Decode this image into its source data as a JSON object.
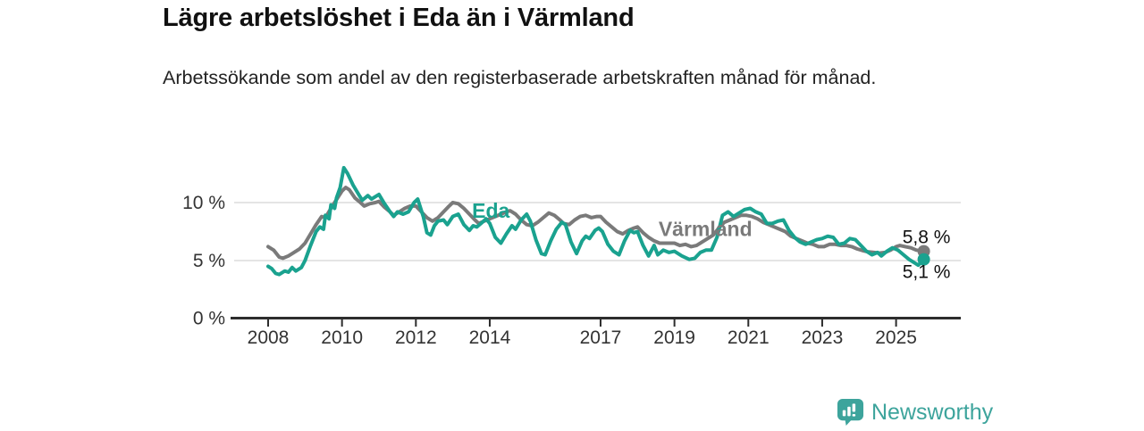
{
  "header": {
    "title": "Lägre arbetslöshet i Eda än i Värmland",
    "subtitle": "Arbetssökande som andel av den registerbaserade arbetskraften månad för månad."
  },
  "chart_data": {
    "type": "line",
    "unit": "%",
    "grid": "horizontal-only",
    "x_axis": {
      "ticks": [
        2008,
        2010,
        2012,
        2014,
        2017,
        2019,
        2021,
        2023,
        2025
      ],
      "range": [
        2007.8,
        2026.2
      ]
    },
    "y_axis": {
      "ticks": [
        {
          "value": 0,
          "label": "0 %"
        },
        {
          "value": 5,
          "label": "5 %"
        },
        {
          "value": 10,
          "label": "10 %"
        }
      ],
      "range": [
        0,
        13.5
      ]
    },
    "series": [
      {
        "name": "Värmland",
        "id": "varmland",
        "color": "#7a7a7a",
        "last_value_label": "5,8 %",
        "label_at": {
          "year": 2018.57,
          "value": 7.1
        },
        "points": [
          [
            2008.0,
            6.2
          ],
          [
            2008.15,
            5.9
          ],
          [
            2008.3,
            5.3
          ],
          [
            2008.4,
            5.2
          ],
          [
            2008.55,
            5.4
          ],
          [
            2008.7,
            5.7
          ],
          [
            2008.85,
            6.0
          ],
          [
            2009.0,
            6.5
          ],
          [
            2009.15,
            7.3
          ],
          [
            2009.3,
            8.1
          ],
          [
            2009.45,
            8.8
          ],
          [
            2009.55,
            8.7
          ],
          [
            2009.7,
            9.5
          ],
          [
            2009.8,
            10.0
          ],
          [
            2009.9,
            10.5
          ],
          [
            2010.0,
            11.0
          ],
          [
            2010.1,
            11.3
          ],
          [
            2010.2,
            11.1
          ],
          [
            2010.35,
            10.4
          ],
          [
            2010.5,
            10.0
          ],
          [
            2010.6,
            9.7
          ],
          [
            2010.75,
            9.9
          ],
          [
            2010.9,
            10.0
          ],
          [
            2011.0,
            10.1
          ],
          [
            2011.15,
            9.6
          ],
          [
            2011.3,
            9.2
          ],
          [
            2011.4,
            8.9
          ],
          [
            2011.55,
            9.2
          ],
          [
            2011.7,
            9.5
          ],
          [
            2011.85,
            9.7
          ],
          [
            2012.0,
            9.7
          ],
          [
            2012.15,
            9.2
          ],
          [
            2012.3,
            8.7
          ],
          [
            2012.45,
            8.4
          ],
          [
            2012.6,
            8.7
          ],
          [
            2012.75,
            9.2
          ],
          [
            2012.9,
            9.7
          ],
          [
            2013.0,
            10.0
          ],
          [
            2013.15,
            9.9
          ],
          [
            2013.3,
            9.5
          ],
          [
            2013.45,
            9.0
          ],
          [
            2013.6,
            8.5
          ],
          [
            2013.7,
            8.2
          ],
          [
            2013.85,
            8.4
          ],
          [
            2014.0,
            8.6
          ],
          [
            2014.15,
            8.8
          ],
          [
            2014.3,
            9.0
          ],
          [
            2014.45,
            9.2
          ],
          [
            2014.55,
            9.3
          ],
          [
            2014.7,
            9.0
          ],
          [
            2014.85,
            8.5
          ],
          [
            2015.0,
            8.1
          ],
          [
            2015.15,
            8.0
          ],
          [
            2015.3,
            8.3
          ],
          [
            2015.45,
            8.7
          ],
          [
            2015.6,
            9.1
          ],
          [
            2015.75,
            8.9
          ],
          [
            2015.9,
            8.5
          ],
          [
            2016.0,
            8.2
          ],
          [
            2016.15,
            8.1
          ],
          [
            2016.3,
            8.5
          ],
          [
            2016.45,
            8.8
          ],
          [
            2016.6,
            8.9
          ],
          [
            2016.75,
            8.7
          ],
          [
            2016.9,
            8.8
          ],
          [
            2017.0,
            8.8
          ],
          [
            2017.15,
            8.3
          ],
          [
            2017.3,
            7.9
          ],
          [
            2017.45,
            7.5
          ],
          [
            2017.6,
            7.3
          ],
          [
            2017.75,
            7.6
          ],
          [
            2017.9,
            7.8
          ],
          [
            2018.0,
            7.9
          ],
          [
            2018.15,
            7.4
          ],
          [
            2018.3,
            7.0
          ],
          [
            2018.45,
            6.7
          ],
          [
            2018.6,
            6.5
          ],
          [
            2018.75,
            6.5
          ],
          [
            2018.9,
            6.5
          ],
          [
            2019.0,
            6.5
          ],
          [
            2019.15,
            6.3
          ],
          [
            2019.3,
            6.4
          ],
          [
            2019.45,
            6.2
          ],
          [
            2019.6,
            6.3
          ],
          [
            2019.75,
            6.6
          ],
          [
            2019.9,
            6.9
          ],
          [
            2020.05,
            7.2
          ],
          [
            2020.2,
            7.8
          ],
          [
            2020.35,
            8.3
          ],
          [
            2020.5,
            8.5
          ],
          [
            2020.65,
            8.7
          ],
          [
            2020.8,
            8.9
          ],
          [
            2020.95,
            8.9
          ],
          [
            2021.1,
            8.8
          ],
          [
            2021.25,
            8.6
          ],
          [
            2021.4,
            8.3
          ],
          [
            2021.55,
            8.1
          ],
          [
            2021.7,
            7.9
          ],
          [
            2021.85,
            7.7
          ],
          [
            2022.0,
            7.5
          ],
          [
            2022.15,
            7.1
          ],
          [
            2022.3,
            6.9
          ],
          [
            2022.45,
            6.7
          ],
          [
            2022.6,
            6.5
          ],
          [
            2022.75,
            6.4
          ],
          [
            2022.9,
            6.2
          ],
          [
            2023.05,
            6.2
          ],
          [
            2023.2,
            6.4
          ],
          [
            2023.35,
            6.4
          ],
          [
            2023.5,
            6.3
          ],
          [
            2023.65,
            6.3
          ],
          [
            2023.8,
            6.2
          ],
          [
            2023.95,
            6.0
          ],
          [
            2024.1,
            5.85
          ],
          [
            2024.25,
            5.75
          ],
          [
            2024.4,
            5.7
          ],
          [
            2024.55,
            5.65
          ],
          [
            2024.7,
            5.7
          ],
          [
            2024.85,
            5.9
          ],
          [
            2025.0,
            6.2
          ],
          [
            2025.1,
            6.3
          ],
          [
            2025.25,
            6.2
          ],
          [
            2025.4,
            6.1
          ],
          [
            2025.55,
            5.9
          ],
          [
            2025.65,
            5.85
          ],
          [
            2025.75,
            5.8
          ]
        ]
      },
      {
        "name": "Eda",
        "id": "eda",
        "color": "#1aa28f",
        "last_value_label": "5,1 %",
        "label_at": {
          "year": 2013.52,
          "value": 8.7
        },
        "points": [
          [
            2008.0,
            4.5
          ],
          [
            2008.1,
            4.3
          ],
          [
            2008.2,
            3.9
          ],
          [
            2008.3,
            3.8
          ],
          [
            2008.45,
            4.1
          ],
          [
            2008.55,
            4.0
          ],
          [
            2008.65,
            4.4
          ],
          [
            2008.75,
            4.1
          ],
          [
            2008.9,
            4.4
          ],
          [
            2009.0,
            5.0
          ],
          [
            2009.15,
            6.3
          ],
          [
            2009.3,
            7.5
          ],
          [
            2009.4,
            7.9
          ],
          [
            2009.5,
            7.7
          ],
          [
            2009.55,
            8.9
          ],
          [
            2009.65,
            8.6
          ],
          [
            2009.7,
            9.8
          ],
          [
            2009.8,
            9.5
          ],
          [
            2009.85,
            10.4
          ],
          [
            2009.95,
            11.3
          ],
          [
            2010.05,
            13.0
          ],
          [
            2010.15,
            12.5
          ],
          [
            2010.3,
            11.5
          ],
          [
            2010.45,
            10.7
          ],
          [
            2010.55,
            10.2
          ],
          [
            2010.7,
            10.6
          ],
          [
            2010.8,
            10.3
          ],
          [
            2010.95,
            10.6
          ],
          [
            2011.0,
            10.7
          ],
          [
            2011.15,
            9.9
          ],
          [
            2011.3,
            9.2
          ],
          [
            2011.4,
            8.8
          ],
          [
            2011.5,
            9.2
          ],
          [
            2011.65,
            9.0
          ],
          [
            2011.8,
            9.2
          ],
          [
            2011.95,
            10.0
          ],
          [
            2012.05,
            10.3
          ],
          [
            2012.2,
            8.8
          ],
          [
            2012.3,
            7.4
          ],
          [
            2012.4,
            7.2
          ],
          [
            2012.5,
            8.0
          ],
          [
            2012.6,
            8.4
          ],
          [
            2012.75,
            8.5
          ],
          [
            2012.85,
            8.1
          ],
          [
            2013.0,
            8.8
          ],
          [
            2013.15,
            9.0
          ],
          [
            2013.3,
            8.1
          ],
          [
            2013.45,
            7.6
          ],
          [
            2013.55,
            8.0
          ],
          [
            2013.65,
            7.9
          ],
          [
            2013.8,
            8.3
          ],
          [
            2013.9,
            8.6
          ],
          [
            2014.0,
            8.2
          ],
          [
            2014.15,
            7.0
          ],
          [
            2014.3,
            6.5
          ],
          [
            2014.45,
            7.3
          ],
          [
            2014.6,
            8.0
          ],
          [
            2014.7,
            7.7
          ],
          [
            2014.85,
            8.5
          ],
          [
            2015.0,
            9.0
          ],
          [
            2015.1,
            8.4
          ],
          [
            2015.25,
            6.8
          ],
          [
            2015.4,
            5.6
          ],
          [
            2015.5,
            5.5
          ],
          [
            2015.65,
            6.7
          ],
          [
            2015.8,
            7.7
          ],
          [
            2015.95,
            8.3
          ],
          [
            2016.05,
            8.1
          ],
          [
            2016.2,
            6.6
          ],
          [
            2016.35,
            5.6
          ],
          [
            2016.5,
            6.7
          ],
          [
            2016.6,
            7.1
          ],
          [
            2016.7,
            6.9
          ],
          [
            2016.85,
            7.6
          ],
          [
            2016.95,
            7.8
          ],
          [
            2017.05,
            7.5
          ],
          [
            2017.2,
            6.4
          ],
          [
            2017.35,
            5.8
          ],
          [
            2017.5,
            5.5
          ],
          [
            2017.65,
            6.7
          ],
          [
            2017.8,
            7.6
          ],
          [
            2017.9,
            7.4
          ],
          [
            2018.0,
            7.5
          ],
          [
            2018.15,
            6.3
          ],
          [
            2018.3,
            5.4
          ],
          [
            2018.45,
            6.3
          ],
          [
            2018.55,
            5.5
          ],
          [
            2018.7,
            5.9
          ],
          [
            2018.85,
            5.7
          ],
          [
            2019.0,
            5.8
          ],
          [
            2019.2,
            5.4
          ],
          [
            2019.4,
            5.1
          ],
          [
            2019.55,
            5.2
          ],
          [
            2019.7,
            5.7
          ],
          [
            2019.85,
            5.9
          ],
          [
            2020.0,
            5.9
          ],
          [
            2020.15,
            7.0
          ],
          [
            2020.3,
            8.9
          ],
          [
            2020.45,
            9.2
          ],
          [
            2020.6,
            8.8
          ],
          [
            2020.75,
            9.1
          ],
          [
            2020.9,
            9.4
          ],
          [
            2021.05,
            9.5
          ],
          [
            2021.2,
            9.2
          ],
          [
            2021.35,
            9.0
          ],
          [
            2021.5,
            8.2
          ],
          [
            2021.65,
            8.2
          ],
          [
            2021.8,
            8.4
          ],
          [
            2021.95,
            8.5
          ],
          [
            2022.1,
            7.6
          ],
          [
            2022.25,
            7.0
          ],
          [
            2022.4,
            6.6
          ],
          [
            2022.55,
            6.4
          ],
          [
            2022.7,
            6.6
          ],
          [
            2022.85,
            6.8
          ],
          [
            2023.0,
            6.9
          ],
          [
            2023.15,
            7.1
          ],
          [
            2023.3,
            7.0
          ],
          [
            2023.45,
            6.4
          ],
          [
            2023.6,
            6.5
          ],
          [
            2023.75,
            6.9
          ],
          [
            2023.9,
            6.8
          ],
          [
            2024.05,
            6.3
          ],
          [
            2024.2,
            5.8
          ],
          [
            2024.35,
            5.5
          ],
          [
            2024.5,
            5.7
          ],
          [
            2024.6,
            5.4
          ],
          [
            2024.75,
            5.8
          ],
          [
            2024.9,
            6.1
          ],
          [
            2025.05,
            5.9
          ],
          [
            2025.2,
            5.5
          ],
          [
            2025.35,
            5.1
          ],
          [
            2025.5,
            4.8
          ],
          [
            2025.6,
            4.6
          ],
          [
            2025.75,
            5.1
          ]
        ]
      }
    ],
    "end_labels": [
      {
        "series": "Värmland",
        "text": "5,8 %",
        "position": "above"
      },
      {
        "series": "Eda",
        "text": "5,1 %",
        "position": "below"
      }
    ]
  },
  "footer": {
    "brand": "Newsworthy",
    "brand_color": "#3da49c",
    "logo_icon": "bar-chart-pin-icon"
  }
}
